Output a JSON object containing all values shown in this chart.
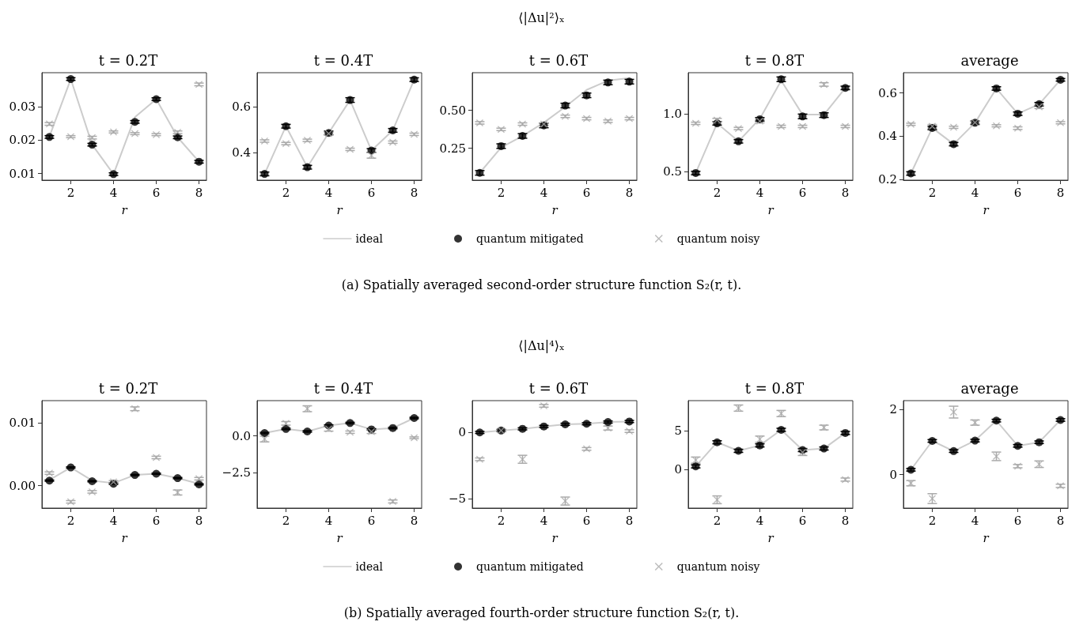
{
  "chart_data": [
    {
      "type": "line",
      "title": "t = 0.2T",
      "xlabel": "r",
      "x": [
        1,
        2,
        3,
        4,
        5,
        6,
        7,
        8
      ],
      "xlim": [
        0.65,
        8.35
      ],
      "xticks": [
        2,
        4,
        6,
        8
      ],
      "ylim": [
        0.008,
        0.0401
      ],
      "yticks": [
        0.01,
        0.02,
        0.03
      ],
      "legend": "bottom",
      "annotations": [
        "⟨|Δu|²⟩ₓ",
        "(a) Spatially averaged second-order structure function S₂(r, t)."
      ],
      "series": [
        {
          "name": "ideal",
          "color": "#cccccc",
          "marker": "none",
          "values": [
            0.021,
            0.0382,
            0.0186,
            0.0098,
            0.0268,
            0.0322,
            0.0208,
            0.0135
          ]
        },
        {
          "name": "quantum mitigated",
          "type": "scatter",
          "color": "#000000",
          "marker": "circle",
          "values": [
            0.0209,
            0.0382,
            0.0186,
            0.0098,
            0.0254,
            0.0322,
            0.0208,
            0.0135
          ],
          "errors": [
            0.0004,
            0.0004,
            0.0004,
            0.0004,
            0.0004,
            0.0004,
            0.0004,
            0.0004
          ]
        },
        {
          "name": "quantum noisy",
          "type": "scatter",
          "color": "#aaaaaa",
          "marker": "cross",
          "values": [
            0.0248,
            0.021,
            0.0207,
            0.0224,
            0.0219,
            0.0216,
            0.0223,
            0.0366
          ],
          "errors": [
            0.0004,
            0.0003,
            0.0004,
            0.0003,
            0.0003,
            0.0003,
            0.0004,
            0.0004
          ]
        }
      ]
    },
    {
      "type": "line",
      "title": "t = 0.4T",
      "xlabel": "r",
      "x": [
        1,
        2,
        3,
        4,
        5,
        6,
        7,
        8
      ],
      "xlim": [
        0.65,
        8.35
      ],
      "xticks": [
        2,
        4,
        6,
        8
      ],
      "ylim": [
        0.282,
        0.746
      ],
      "yticks": [
        0.4,
        0.6
      ],
      "series": [
        {
          "color": "#cccccc",
          "marker": "none",
          "values": [
            0.309,
            0.515,
            0.338,
            0.486,
            0.628,
            0.41,
            0.497,
            0.716
          ]
        },
        {
          "type": "scatter",
          "color": "#000000",
          "marker": "circle",
          "values": [
            0.309,
            0.515,
            0.338,
            0.486,
            0.628,
            0.41,
            0.497,
            0.716
          ],
          "errors": [
            0.008,
            0.008,
            0.008,
            0.008,
            0.01,
            0.008,
            0.008,
            0.008
          ]
        },
        {
          "type": "scatter",
          "color": "#aaaaaa",
          "marker": "cross",
          "values": [
            0.451,
            0.44,
            0.454,
            0.483,
            0.415,
            0.389,
            0.446,
            0.48
          ],
          "errors": [
            0.005,
            0.005,
            0.005,
            0.005,
            0.005,
            0.012,
            0.005,
            0.005
          ]
        }
      ]
    },
    {
      "type": "line",
      "title": "t = 0.6T",
      "xlabel": "r",
      "x": [
        1,
        2,
        3,
        4,
        5,
        6,
        7,
        8
      ],
      "xlim": [
        0.65,
        8.35
      ],
      "xticks": [
        2,
        4,
        6,
        8
      ],
      "ylim": [
        0.04,
        0.747
      ],
      "yticks": [
        {
          "value": 0.25,
          "label": "0.25"
        },
        {
          "value": 0.5,
          "label": "0.50"
        }
      ],
      "series": [
        {
          "color": "#cccccc",
          "marker": "none",
          "values": [
            0.088,
            0.255,
            0.33,
            0.419,
            0.522,
            0.634,
            0.695,
            0.712
          ]
        },
        {
          "type": "scatter",
          "color": "#000000",
          "marker": "circle",
          "values": [
            0.088,
            0.264,
            0.331,
            0.4,
            0.531,
            0.598,
            0.683,
            0.688
          ],
          "errors": [
            0.015,
            0.015,
            0.015,
            0.015,
            0.015,
            0.015,
            0.015,
            0.015
          ]
        },
        {
          "type": "scatter",
          "color": "#aaaaaa",
          "marker": "cross",
          "values": [
            0.417,
            0.374,
            0.409,
            0.409,
            0.46,
            0.445,
            0.428,
            0.445
          ],
          "errors": [
            0.008,
            0.008,
            0.008,
            0.008,
            0.008,
            0.008,
            0.008,
            0.008
          ]
        }
      ]
    },
    {
      "type": "line",
      "title": "t = 0.8T",
      "xlabel": "r",
      "x": [
        1,
        2,
        3,
        4,
        5,
        6,
        7,
        8
      ],
      "xlim": [
        0.65,
        8.35
      ],
      "xticks": [
        2,
        4,
        6,
        8
      ],
      "ylim": [
        0.427,
        1.359
      ],
      "yticks": [
        0.5,
        {
          "value": 1,
          "label": "1.0"
        }
      ],
      "series": [
        {
          "color": "#cccccc",
          "marker": "none",
          "values": [
            0.489,
            0.92,
            0.764,
            0.96,
            1.29,
            0.995,
            0.995,
            1.227
          ]
        },
        {
          "type": "scatter",
          "color": "#000000",
          "marker": "circle",
          "values": [
            0.489,
            0.92,
            0.764,
            0.955,
            1.302,
            0.98,
            0.991,
            1.227
          ],
          "errors": [
            0.015,
            0.015,
            0.015,
            0.015,
            0.02,
            0.02,
            0.02,
            0.015
          ]
        },
        {
          "type": "scatter",
          "color": "#aaaaaa",
          "marker": "cross",
          "values": [
            0.92,
            0.948,
            0.875,
            0.939,
            0.893,
            0.893,
            1.257,
            0.893
          ],
          "errors": [
            0.01,
            0.015,
            0.01,
            0.015,
            0.01,
            0.01,
            0.015,
            0.01
          ]
        }
      ]
    },
    {
      "type": "line",
      "title": "average",
      "xlabel": "r",
      "x": [
        1,
        2,
        3,
        4,
        5,
        6,
        7,
        8
      ],
      "xlim": [
        0.65,
        8.35
      ],
      "xticks": [
        2,
        4,
        6,
        8
      ],
      "ylim": [
        0.196,
        0.694
      ],
      "yticks": [
        0.2,
        0.4,
        0.6
      ],
      "series": [
        {
          "color": "#cccccc",
          "marker": "none",
          "values": [
            0.227,
            0.438,
            0.363,
            0.462,
            0.621,
            0.504,
            0.548,
            0.661
          ]
        },
        {
          "type": "scatter",
          "color": "#000000",
          "marker": "circle",
          "values": [
            0.227,
            0.438,
            0.363,
            0.462,
            0.621,
            0.504,
            0.548,
            0.661
          ],
          "errors": [
            0.008,
            0.008,
            0.008,
            0.008,
            0.008,
            0.008,
            0.008,
            0.006
          ]
        },
        {
          "type": "scatter",
          "color": "#aaaaaa",
          "marker": "cross",
          "values": [
            0.455,
            0.446,
            0.441,
            0.463,
            0.448,
            0.437,
            0.536,
            0.462
          ],
          "errors": [
            0.005,
            0.008,
            0.005,
            0.006,
            0.005,
            0.006,
            0.008,
            0.005
          ]
        }
      ]
    },
    {
      "type": "line",
      "title": "t = 0.2T",
      "xlabel": "r",
      "x": [
        1,
        2,
        3,
        4,
        5,
        6,
        7,
        8
      ],
      "xlim": [
        0.65,
        8.35
      ],
      "xticks": [
        2,
        4,
        6,
        8
      ],
      "ylim": [
        -0.0036,
        0.0136
      ],
      "yticks": [
        {
          "value": 0,
          "label": "0.00"
        },
        0.01
      ],
      "legend": "bottom",
      "annotations": [
        "⟨|Δu|⁴⟩ₓ",
        "(b) Spatially averaged fourth-order structure function S₂(r, t)."
      ],
      "series": [
        {
          "name": "ideal",
          "color": "#cccccc",
          "marker": "none",
          "values": [
            0.0009,
            0.0029,
            0.0008,
            0.0004,
            0.0017,
            0.0019,
            0.0012,
            0.0003
          ]
        },
        {
          "name": "quantum mitigated",
          "type": "scatter",
          "color": "#000000",
          "marker": "circle",
          "values": [
            0.0008,
            0.0029,
            0.0007,
            0.0003,
            0.0017,
            0.0019,
            0.0012,
            0.0002
          ],
          "errors": [
            0.0001,
            0.0001,
            0.0001,
            0.0001,
            0.0001,
            0.0001,
            0.0001,
            0.0001
          ]
        },
        {
          "name": "quantum noisy",
          "type": "scatter",
          "color": "#aaaaaa",
          "marker": "cross",
          "values": [
            0.002,
            -0.0026,
            -0.001,
            0.0006,
            0.0123,
            0.0045,
            -0.0011,
            0.0011
          ],
          "errors": [
            0.0002,
            0.0002,
            0.0002,
            0.0002,
            0.0003,
            0.0002,
            0.0004,
            0.0002
          ]
        }
      ]
    },
    {
      "type": "line",
      "title": "t = 0.4T",
      "xlabel": "r",
      "x": [
        1,
        2,
        3,
        4,
        5,
        6,
        7,
        8
      ],
      "xlim": [
        0.65,
        8.35
      ],
      "xticks": [
        2,
        4,
        6,
        8
      ],
      "ylim": [
        -4.9,
        2.39
      ],
      "yticks": [
        {
          "value": -2.5,
          "label": "−2.5"
        },
        {
          "value": 0,
          "label": "0.0"
        }
      ],
      "series": [
        {
          "color": "#cccccc",
          "marker": "none",
          "values": [
            0.19,
            0.47,
            0.3,
            0.7,
            0.87,
            0.44,
            0.53,
            1.21
          ]
        },
        {
          "type": "scatter",
          "color": "#000000",
          "marker": "circle",
          "values": [
            0.19,
            0.47,
            0.3,
            0.7,
            0.87,
            0.44,
            0.53,
            1.21
          ],
          "errors": [
            0.05,
            0.05,
            0.05,
            0.05,
            0.05,
            0.05,
            0.05,
            0.05
          ]
        },
        {
          "type": "scatter",
          "color": "#aaaaaa",
          "marker": "cross",
          "values": [
            -0.21,
            0.85,
            1.84,
            0.47,
            0.25,
            0.28,
            -4.45,
            -0.13
          ],
          "errors": [
            0.2,
            0.12,
            0.2,
            0.15,
            0.08,
            0.12,
            0.1,
            0.06
          ]
        }
      ]
    },
    {
      "type": "line",
      "title": "t = 0.6T",
      "xlabel": "r",
      "x": [
        1,
        2,
        3,
        4,
        5,
        6,
        7,
        8
      ],
      "xlim": [
        0.65,
        8.35
      ],
      "xticks": [
        2,
        4,
        6,
        8
      ],
      "ylim": [
        -5.69,
        2.39
      ],
      "yticks": [
        {
          "value": -5,
          "label": "−5"
        },
        0
      ],
      "series": [
        {
          "color": "#cccccc",
          "marker": "none",
          "values": [
            0,
            0.14,
            0.27,
            0.45,
            0.61,
            0.65,
            0.78,
            0.82
          ]
        },
        {
          "type": "scatter",
          "color": "#000000",
          "marker": "circle",
          "values": [
            0,
            0.14,
            0.27,
            0.45,
            0.61,
            0.65,
            0.78,
            0.82
          ],
          "errors": [
            0.08,
            0.08,
            0.08,
            0.08,
            0.08,
            0.08,
            0.08,
            0.08
          ]
        },
        {
          "type": "scatter",
          "color": "#aaaaaa",
          "marker": "cross",
          "values": [
            -2.02,
            0.14,
            -2.02,
            2.0,
            -5.16,
            -1.24,
            0.33,
            0.1
          ],
          "errors": [
            0.1,
            0.1,
            0.3,
            0.1,
            0.3,
            0.1,
            0.15,
            0.1
          ]
        }
      ]
    },
    {
      "type": "line",
      "title": "t = 0.8T",
      "xlabel": "r",
      "x": [
        1,
        2,
        3,
        4,
        5,
        6,
        7,
        8
      ],
      "xlim": [
        0.65,
        8.35
      ],
      "xticks": [
        2,
        4,
        6,
        8
      ],
      "ylim": [
        -4.97,
        8.86
      ],
      "yticks": [
        0,
        5
      ],
      "series": [
        {
          "color": "#cccccc",
          "marker": "none",
          "values": [
            0.4,
            3.5,
            2.4,
            3.1,
            5.1,
            2.5,
            2.7,
            4.7
          ]
        },
        {
          "type": "scatter",
          "color": "#000000",
          "marker": "circle",
          "values": [
            0.4,
            3.5,
            2.4,
            3.1,
            5.1,
            2.5,
            2.7,
            4.7
          ],
          "errors": [
            0.2,
            0.2,
            0.2,
            0.2,
            0.2,
            0.2,
            0.2,
            0.2
          ]
        },
        {
          "type": "scatter",
          "color": "#aaaaaa",
          "marker": "cross",
          "values": [
            1.2,
            -3.9,
            7.9,
            3.9,
            7.2,
            2.2,
            5.4,
            -1.3
          ],
          "errors": [
            0.4,
            0.5,
            0.4,
            0.4,
            0.4,
            0.4,
            0.3,
            0.2
          ]
        }
      ]
    },
    {
      "type": "line",
      "title": "average",
      "xlabel": "r",
      "x": [
        1,
        2,
        3,
        4,
        5,
        6,
        7,
        8
      ],
      "xlim": [
        0.65,
        8.35
      ],
      "xticks": [
        2,
        4,
        6,
        8
      ],
      "ylim": [
        -1.02,
        2.26
      ],
      "yticks": [
        0,
        2
      ],
      "series": [
        {
          "color": "#cccccc",
          "marker": "none",
          "values": [
            0.15,
            1.03,
            0.72,
            1.04,
            1.65,
            0.88,
            0.99,
            1.67
          ]
        },
        {
          "type": "scatter",
          "color": "#000000",
          "marker": "circle",
          "values": [
            0.15,
            1.03,
            0.72,
            1.04,
            1.65,
            0.88,
            0.99,
            1.67
          ],
          "errors": [
            0.04,
            0.04,
            0.04,
            0.04,
            0.04,
            0.04,
            0.04,
            0.04
          ]
        },
        {
          "type": "scatter",
          "color": "#aaaaaa",
          "marker": "cross",
          "values": [
            -0.26,
            -0.73,
            1.91,
            1.59,
            0.56,
            0.26,
            0.32,
            -0.34
          ],
          "errors": [
            0.08,
            0.15,
            0.18,
            0.08,
            0.13,
            0.05,
            0.1,
            0.05
          ]
        }
      ]
    }
  ]
}
